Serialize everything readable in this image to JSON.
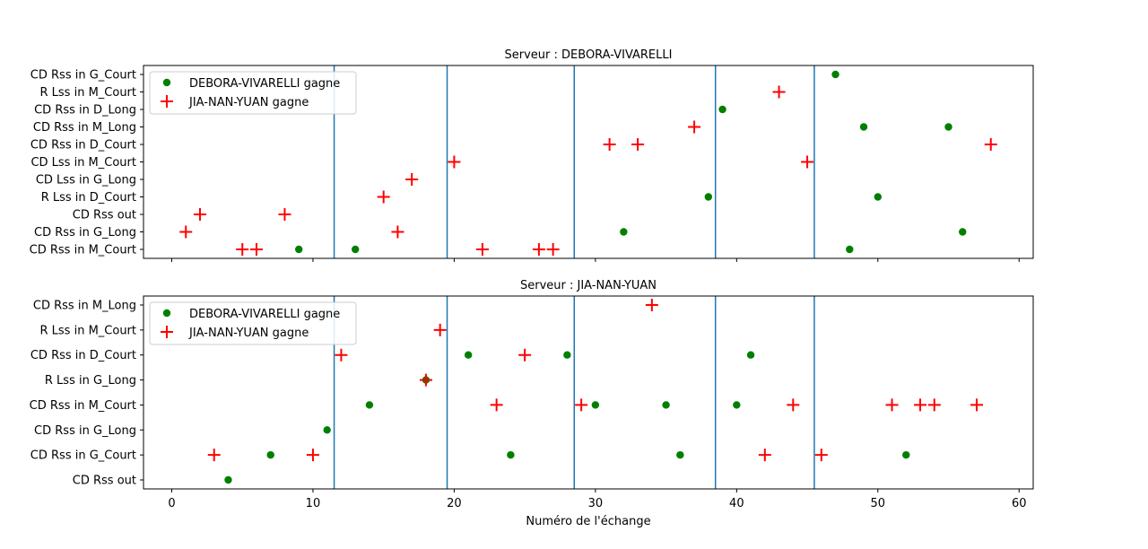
{
  "chart_data": {
    "type": "scatter",
    "xlabel": "Numéro de l'échange",
    "xlim": [
      -2,
      61
    ],
    "xticks": [
      0,
      10,
      20,
      30,
      40,
      50,
      60
    ],
    "vlines": [
      11.5,
      19.5,
      28.5,
      38.5,
      45.5
    ],
    "colors": {
      "deb": "#008000",
      "jia": "#ff0000",
      "vline": "#1f77b4"
    },
    "legend": [
      "DEBORA-VIVARELLI gagne",
      "JIA-NAN-YUAN gagne"
    ],
    "panels": [
      {
        "title": "Serveur : DEBORA-VIVARELLI",
        "categories": [
          "CD Rss in M_Court",
          "CD Rss in G_Long",
          "CD Rss out",
          "R Lss in D_Court",
          "CD Lss in G_Long",
          "CD Lss in M_Court",
          "CD Rss in D_Court",
          "CD Rss in M_Long",
          "CD Rss in D_Long",
          "R Lss in M_Court",
          "CD Rss in G_Court"
        ],
        "series": [
          {
            "name": "DEBORA-VIVARELLI gagne",
            "marker": "dot",
            "points": [
              [
                9,
                "CD Rss in M_Court"
              ],
              [
                13,
                "CD Rss in M_Court"
              ],
              [
                48,
                "CD Rss in M_Court"
              ],
              [
                32,
                "CD Rss in G_Long"
              ],
              [
                56,
                "CD Rss in G_Long"
              ],
              [
                38,
                "R Lss in D_Court"
              ],
              [
                50,
                "R Lss in D_Court"
              ],
              [
                49,
                "CD Rss in M_Long"
              ],
              [
                55,
                "CD Rss in M_Long"
              ],
              [
                39,
                "CD Rss in D_Long"
              ],
              [
                47,
                "CD Rss in G_Court"
              ]
            ]
          },
          {
            "name": "JIA-NAN-YUAN gagne",
            "marker": "plus",
            "points": [
              [
                5,
                "CD Rss in M_Court"
              ],
              [
                6,
                "CD Rss in M_Court"
              ],
              [
                22,
                "CD Rss in M_Court"
              ],
              [
                26,
                "CD Rss in M_Court"
              ],
              [
                27,
                "CD Rss in M_Court"
              ],
              [
                1,
                "CD Rss in G_Long"
              ],
              [
                16,
                "CD Rss in G_Long"
              ],
              [
                2,
                "CD Rss out"
              ],
              [
                8,
                "CD Rss out"
              ],
              [
                15,
                "R Lss in D_Court"
              ],
              [
                17,
                "CD Lss in G_Long"
              ],
              [
                20,
                "CD Lss in M_Court"
              ],
              [
                45,
                "CD Lss in M_Court"
              ],
              [
                31,
                "CD Rss in D_Court"
              ],
              [
                33,
                "CD Rss in D_Court"
              ],
              [
                58,
                "CD Rss in D_Court"
              ],
              [
                37,
                "CD Rss in M_Long"
              ],
              [
                43,
                "R Lss in M_Court"
              ]
            ]
          }
        ]
      },
      {
        "title": "Serveur : JIA-NAN-YUAN",
        "categories": [
          "CD Rss out",
          "CD Rss in G_Court",
          "CD Rss in G_Long",
          "CD Rss in M_Court",
          "R Lss in G_Long",
          "CD Rss in D_Court",
          "R Lss in M_Court",
          "CD Rss in M_Long"
        ],
        "series": [
          {
            "name": "DEBORA-VIVARELLI gagne",
            "marker": "dot",
            "points": [
              [
                4,
                "CD Rss out"
              ],
              [
                7,
                "CD Rss in G_Court"
              ],
              [
                24,
                "CD Rss in G_Court"
              ],
              [
                36,
                "CD Rss in G_Court"
              ],
              [
                52,
                "CD Rss in G_Court"
              ],
              [
                11,
                "CD Rss in G_Long"
              ],
              [
                14,
                "CD Rss in M_Court"
              ],
              [
                30,
                "CD Rss in M_Court"
              ],
              [
                35,
                "CD Rss in M_Court"
              ],
              [
                40,
                "CD Rss in M_Court"
              ],
              [
                18,
                "R Lss in G_Long"
              ],
              [
                21,
                "CD Rss in D_Court"
              ],
              [
                28,
                "CD Rss in D_Court"
              ],
              [
                41,
                "CD Rss in D_Court"
              ]
            ]
          },
          {
            "name": "JIA-NAN-YUAN gagne",
            "marker": "plus",
            "points": [
              [
                3,
                "CD Rss in G_Court"
              ],
              [
                10,
                "CD Rss in G_Court"
              ],
              [
                42,
                "CD Rss in G_Court"
              ],
              [
                46,
                "CD Rss in G_Court"
              ],
              [
                23,
                "CD Rss in M_Court"
              ],
              [
                29,
                "CD Rss in M_Court"
              ],
              [
                44,
                "CD Rss in M_Court"
              ],
              [
                51,
                "CD Rss in M_Court"
              ],
              [
                53,
                "CD Rss in M_Court"
              ],
              [
                54,
                "CD Rss in M_Court"
              ],
              [
                57,
                "CD Rss in M_Court"
              ],
              [
                18,
                "R Lss in G_Long"
              ],
              [
                12,
                "CD Rss in D_Court"
              ],
              [
                25,
                "CD Rss in D_Court"
              ],
              [
                19,
                "R Lss in M_Court"
              ],
              [
                34,
                "CD Rss in M_Long"
              ]
            ]
          }
        ]
      }
    ]
  }
}
